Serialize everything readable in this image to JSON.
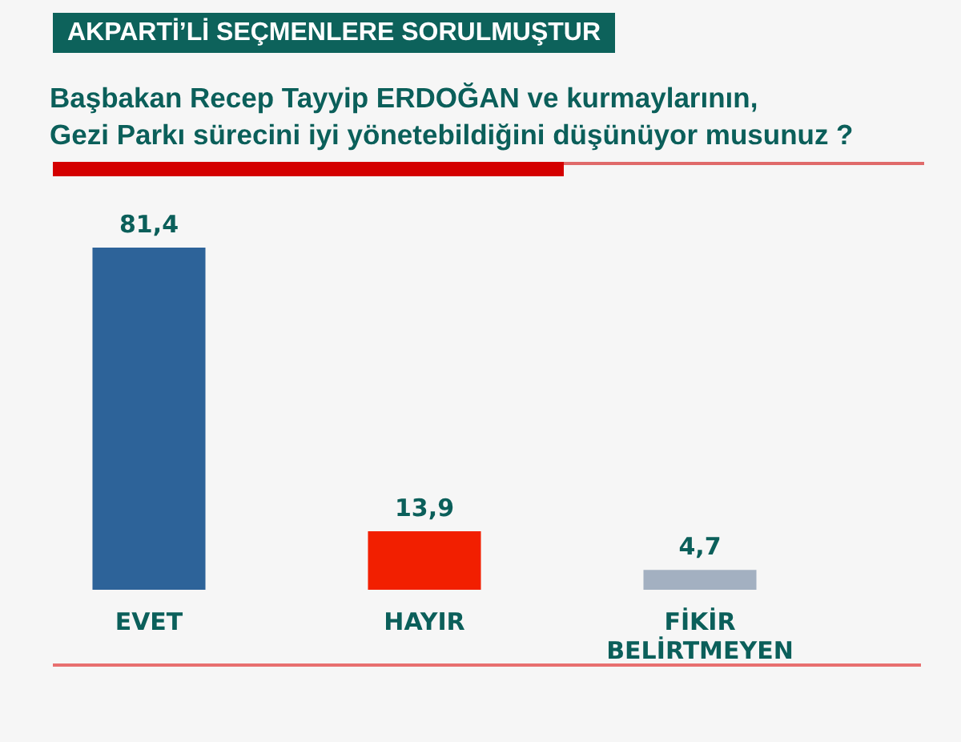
{
  "chart_data": {
    "type": "bar",
    "title": "AKPARTİ’Lİ SEÇMENLERE SORULMUŞTUR",
    "subtitle": "Başbakan Recep Tayyip ERDOĞAN ve kurmaylarının,\nGezi Parkı sürecini iyi yönetebildiğini düşünüyor musunuz ?",
    "categories": [
      "EVET",
      "HAYIR",
      "FİKİR BELİRTMEYEN"
    ],
    "values": [
      81.4,
      13.9,
      4.7
    ],
    "colors": [
      "#2d6399",
      "#f21f00",
      "#a3b0c1"
    ],
    "value_labels": [
      "81,4",
      "13,9",
      "4,7"
    ]
  }
}
